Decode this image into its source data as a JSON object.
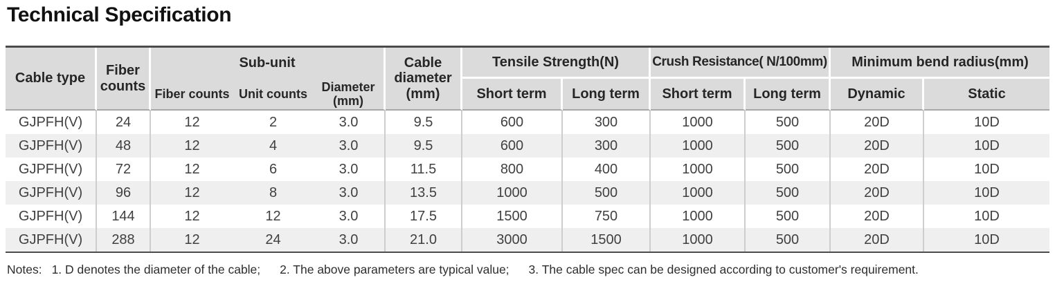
{
  "page": {
    "title": "Technical Specification"
  },
  "table": {
    "header": {
      "cable_type": "Cable type",
      "fiber_counts": "Fiber counts",
      "sub_unit": {
        "label": "Sub-unit",
        "children": [
          "Fiber counts",
          "Unit counts",
          "Diameter (mm)"
        ]
      },
      "cable_diameter": "Cable diameter (mm)",
      "tensile_strength": {
        "label": "Tensile Strength(N)",
        "children": [
          "Short term",
          "Long term"
        ]
      },
      "crush_resistance": {
        "label": "Crush Resistance( N/100mm)",
        "children": [
          "Short term",
          "Long term"
        ]
      },
      "min_bend_radius": {
        "label": "Minimum bend radius(mm)",
        "children": [
          "Dynamic",
          "Static"
        ]
      }
    },
    "rows": [
      [
        "GJPFH(V)",
        "24",
        "12",
        "2",
        "3.0",
        "9.5",
        "600",
        "300",
        "1000",
        "500",
        "20D",
        "10D"
      ],
      [
        "GJPFH(V)",
        "48",
        "12",
        "4",
        "3.0",
        "9.5",
        "600",
        "300",
        "1000",
        "500",
        "20D",
        "10D"
      ],
      [
        "GJPFH(V)",
        "72",
        "12",
        "6",
        "3.0",
        "11.5",
        "800",
        "400",
        "1000",
        "500",
        "20D",
        "10D"
      ],
      [
        "GJPFH(V)",
        "96",
        "12",
        "8",
        "3.0",
        "13.5",
        "1000",
        "500",
        "1000",
        "500",
        "20D",
        "10D"
      ],
      [
        "GJPFH(V)",
        "144",
        "12",
        "12",
        "3.0",
        "17.5",
        "1500",
        "750",
        "1000",
        "500",
        "20D",
        "10D"
      ],
      [
        "GJPFH(V)",
        "288",
        "12",
        "24",
        "3.0",
        "21.0",
        "3000",
        "1500",
        "1000",
        "500",
        "20D",
        "10D"
      ]
    ]
  },
  "notes": {
    "prefix": "Notes:",
    "items": [
      "1. D denotes the diameter of the cable;",
      "2. The above parameters are typical value;",
      "3. The cable spec can be designed according to customer's requirement."
    ]
  },
  "colors": {
    "header_bg": "#dbdbdb",
    "row_alt_bg": "#efefef",
    "table_border_dark": "#4b4b4b",
    "header_separator": "#ffffff",
    "data_separator": "#cdcdcd",
    "header_data_line": "#a6a6a6"
  }
}
